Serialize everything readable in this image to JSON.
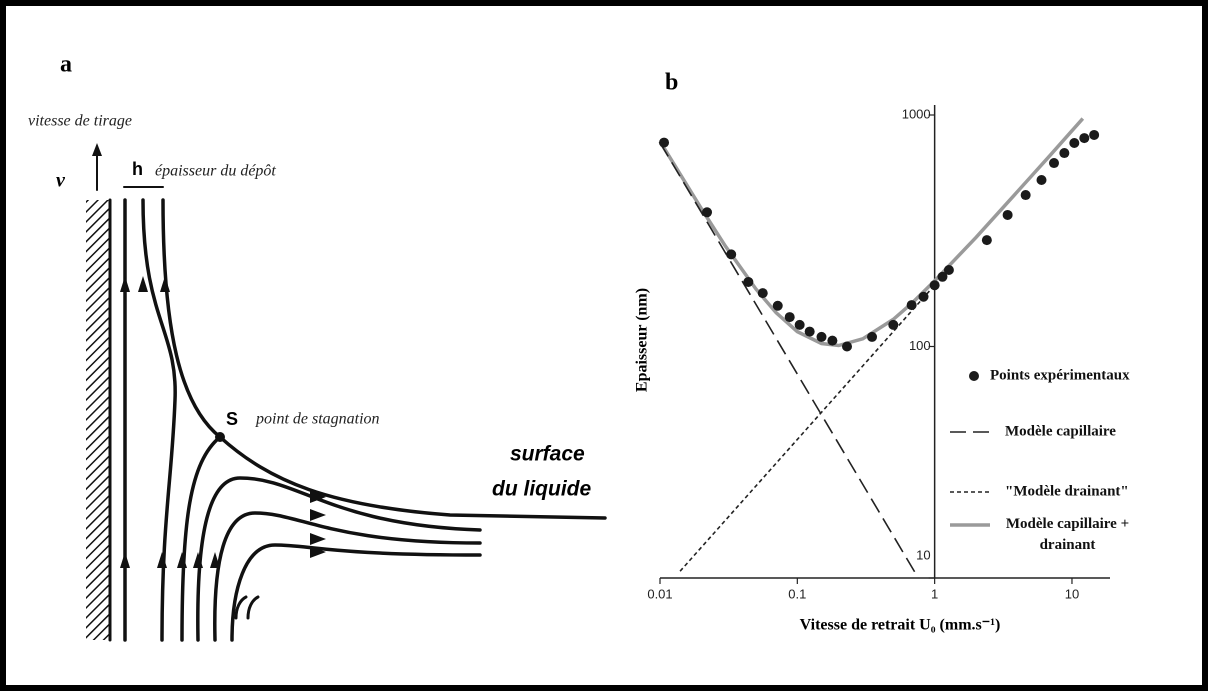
{
  "panel_a": {
    "letter": "a",
    "pull_label": "vitesse de tirage",
    "v_label": "v",
    "h_label": "h",
    "thickness_label": "épaisseur du dépôt",
    "s_label": "S",
    "stagnation_label": "point de stagnation",
    "surface_label": [
      "surface",
      "du liquide"
    ]
  },
  "chart_data": {
    "type": "line",
    "letter": "b",
    "xlabel": "Vitesse de retrait U₀ (mm.s⁻¹)",
    "ylabel": "Epaisseur (nm)",
    "xscale": "log",
    "yscale": "log",
    "xlim": [
      0.01,
      16
    ],
    "ylim": [
      10,
      1000
    ],
    "xticks": [
      0.01,
      0.1,
      1,
      10
    ],
    "yticks": [
      10,
      100,
      1000
    ],
    "yaxis_cross": 1,
    "series": [
      {
        "name": "Points expérimentaux",
        "type": "scatter",
        "color": "#1a1a1a",
        "x": [
          0.0107,
          0.022,
          0.033,
          0.044,
          0.056,
          0.072,
          0.088,
          0.104,
          0.123,
          0.15,
          0.18,
          0.23,
          0.35,
          0.5,
          0.68,
          0.83,
          1.0,
          1.14,
          1.27,
          2.4,
          3.4,
          4.6,
          6.0,
          7.4,
          8.8,
          10.4,
          12.3,
          14.5
        ],
        "values": [
          760,
          380,
          250,
          190,
          170,
          150,
          134,
          124,
          116,
          110,
          106,
          100,
          110,
          124,
          151,
          164,
          184,
          200,
          214,
          288,
          370,
          451,
          524,
          620,
          685,
          757,
          795,
          820
        ]
      },
      {
        "name": "Modèle capillaire",
        "type": "line",
        "style": "dashed",
        "color": "#222",
        "x": [
          0.01,
          0.76
        ],
        "values": [
          760,
          10
        ]
      },
      {
        "name": "\"Modèle drainant\"",
        "type": "line",
        "style": "dotted",
        "color": "#222",
        "x": [
          0.014,
          1
        ],
        "values": [
          10.7,
          184
        ]
      },
      {
        "name": "Modèle capillaire + drainant",
        "type": "line",
        "style": "solid",
        "color": "#9a9a9a",
        "x": [
          0.01,
          0.02,
          0.03,
          0.05,
          0.07,
          0.1,
          0.15,
          0.2,
          0.3,
          0.5,
          0.7,
          1,
          2,
          3,
          5,
          7,
          10,
          12
        ],
        "values": [
          769,
          394,
          271,
          177,
          140,
          116,
          103,
          101,
          108,
          131,
          156,
          192,
          296,
          386,
          540,
          674,
          855,
          965
        ]
      }
    ]
  }
}
